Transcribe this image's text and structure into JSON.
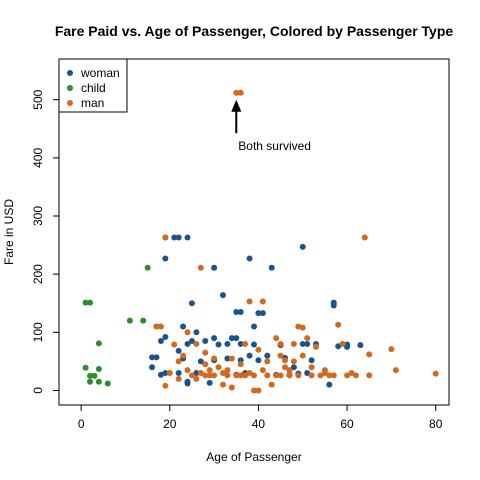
{
  "chart_data": {
    "type": "scatter",
    "title": "Fare Paid vs. Age of Passenger, Colored by Passenger Type",
    "xlabel": "Age of Passenger",
    "ylabel": "Fare in USD",
    "xlim": [
      -5,
      83
    ],
    "ylim": [
      -25,
      570
    ],
    "x_ticks": [
      0,
      20,
      40,
      60,
      80
    ],
    "y_ticks": [
      0,
      100,
      200,
      300,
      400,
      500
    ],
    "grid": false,
    "legend_position": "top-left",
    "series": [
      {
        "name": "woman",
        "color": "#1a5490",
        "points": [
          [
            17,
            110
          ],
          [
            17,
            57
          ],
          [
            16,
            57
          ],
          [
            16,
            40
          ],
          [
            18,
            27
          ],
          [
            19,
            227
          ],
          [
            19,
            263
          ],
          [
            19,
            30
          ],
          [
            18,
            85
          ],
          [
            19,
            92
          ],
          [
            21,
            263
          ],
          [
            22,
            263
          ],
          [
            22,
            68
          ],
          [
            23,
            55
          ],
          [
            23,
            110
          ],
          [
            24,
            263
          ],
          [
            24,
            15
          ],
          [
            24,
            80
          ],
          [
            24,
            12
          ],
          [
            25,
            150
          ],
          [
            25,
            85
          ],
          [
            26,
            100
          ],
          [
            27,
            50
          ],
          [
            28,
            85
          ],
          [
            29,
            13
          ],
          [
            30,
            211
          ],
          [
            30,
            90
          ],
          [
            30,
            52
          ],
          [
            31,
            79
          ],
          [
            32,
            164
          ],
          [
            33,
            80
          ],
          [
            33,
            55
          ],
          [
            34,
            90
          ],
          [
            35,
            135
          ],
          [
            35,
            90
          ],
          [
            35,
            27
          ],
          [
            36,
            135
          ],
          [
            36,
            80
          ],
          [
            36,
            52
          ],
          [
            37,
            30
          ],
          [
            38,
            227
          ],
          [
            39,
            79
          ],
          [
            39,
            110
          ],
          [
            40,
            133
          ],
          [
            40,
            52
          ],
          [
            41,
            133
          ],
          [
            43,
            211
          ],
          [
            44,
            27
          ],
          [
            45,
            78
          ],
          [
            46,
            56
          ],
          [
            47,
            27
          ],
          [
            48,
            40
          ],
          [
            49,
            29
          ],
          [
            50,
            247
          ],
          [
            51,
            80
          ],
          [
            51,
            30
          ],
          [
            52,
            52
          ],
          [
            53,
            80
          ],
          [
            56,
            10
          ],
          [
            57,
            151
          ],
          [
            57,
            146
          ],
          [
            58,
            76
          ],
          [
            60,
            79
          ],
          [
            60,
            75
          ],
          [
            63,
            78
          ],
          [
            50,
            80
          ],
          [
            42,
            60
          ],
          [
            38,
            60
          ],
          [
            26,
            30
          ],
          [
            22,
            30
          ]
        ]
      },
      {
        "name": "child",
        "color": "#2e8b2e",
        "points": [
          [
            1,
            151
          ],
          [
            2,
            151
          ],
          [
            1,
            39
          ],
          [
            2,
            25
          ],
          [
            3,
            25
          ],
          [
            2,
            15
          ],
          [
            4,
            37
          ],
          [
            4,
            15
          ],
          [
            4,
            81
          ],
          [
            6,
            12
          ],
          [
            11,
            120
          ],
          [
            14,
            120
          ],
          [
            15,
            211
          ]
        ]
      },
      {
        "name": "man",
        "color": "#d2691e",
        "points": [
          [
            35,
            512
          ],
          [
            36,
            512
          ],
          [
            17,
            110
          ],
          [
            18,
            110
          ],
          [
            19,
            263
          ],
          [
            19,
            8
          ],
          [
            20,
            30
          ],
          [
            21,
            79
          ],
          [
            22,
            50
          ],
          [
            23,
            60
          ],
          [
            24,
            100
          ],
          [
            24,
            35
          ],
          [
            25,
            26
          ],
          [
            26,
            80
          ],
          [
            27,
            211
          ],
          [
            27,
            30
          ],
          [
            28,
            65
          ],
          [
            28,
            26
          ],
          [
            29,
            26
          ],
          [
            29,
            35
          ],
          [
            30,
            26
          ],
          [
            30,
            55
          ],
          [
            31,
            40
          ],
          [
            32,
            10
          ],
          [
            32,
            30
          ],
          [
            33,
            26
          ],
          [
            34,
            5
          ],
          [
            34,
            55
          ],
          [
            35,
            26
          ],
          [
            36,
            45
          ],
          [
            36,
            26
          ],
          [
            37,
            26
          ],
          [
            37,
            80
          ],
          [
            38,
            153
          ],
          [
            38,
            30
          ],
          [
            39,
            0
          ],
          [
            39,
            26
          ],
          [
            40,
            0
          ],
          [
            40,
            70
          ],
          [
            41,
            153
          ],
          [
            42,
            26
          ],
          [
            42,
            50
          ],
          [
            43,
            10
          ],
          [
            44,
            90
          ],
          [
            44,
            26
          ],
          [
            45,
            80
          ],
          [
            45,
            60
          ],
          [
            46,
            40
          ],
          [
            46,
            52
          ],
          [
            47,
            35
          ],
          [
            47,
            26
          ],
          [
            48,
            80
          ],
          [
            48,
            50
          ],
          [
            49,
            110
          ],
          [
            49,
            26
          ],
          [
            50,
            108
          ],
          [
            50,
            60
          ],
          [
            51,
            90
          ],
          [
            52,
            26
          ],
          [
            53,
            75
          ],
          [
            54,
            26
          ],
          [
            55,
            35
          ],
          [
            55,
            30
          ],
          [
            56,
            26
          ],
          [
            57,
            26
          ],
          [
            58,
            113
          ],
          [
            59,
            80
          ],
          [
            60,
            26
          ],
          [
            61,
            30
          ],
          [
            62,
            26
          ],
          [
            64,
            263
          ],
          [
            65,
            26
          ],
          [
            65,
            62
          ],
          [
            70,
            71
          ],
          [
            71,
            35
          ],
          [
            80,
            29
          ],
          [
            45,
            26
          ],
          [
            41,
            35
          ],
          [
            33,
            35
          ],
          [
            28,
            45
          ],
          [
            26,
            20
          ],
          [
            22,
            20
          ],
          [
            52,
            40
          ]
        ]
      }
    ],
    "annotations": [
      {
        "text": "Both survived",
        "x": 35,
        "y": 420,
        "arrow_to": [
          35,
          500
        ]
      }
    ]
  }
}
